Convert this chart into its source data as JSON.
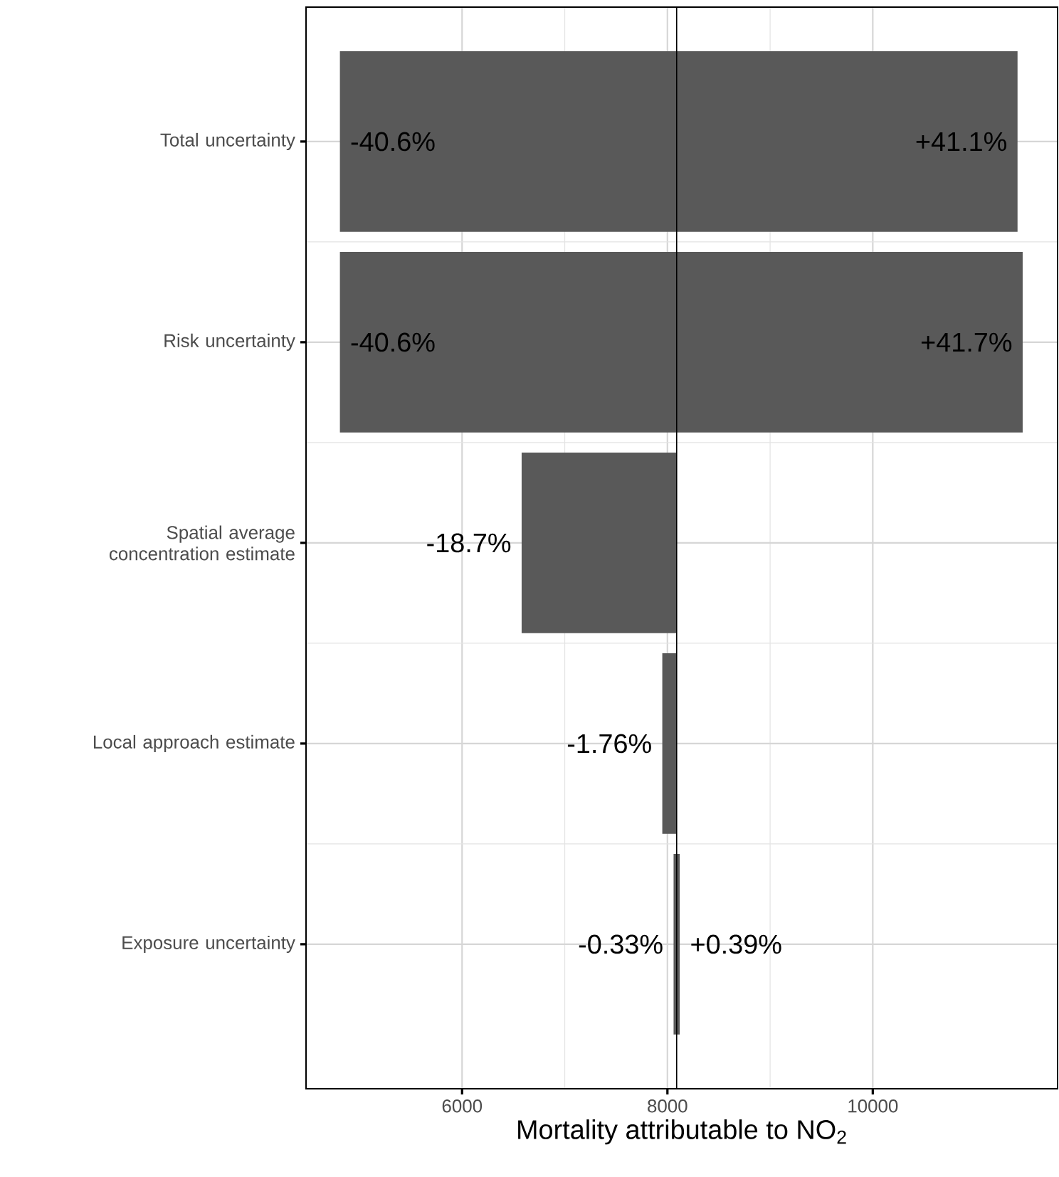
{
  "chart_data": {
    "type": "bar",
    "orientation": "horizontal",
    "grid": true,
    "categories": [
      "Total uncertainty",
      "Risk uncertainty",
      "Spatial average concentration estimate",
      "Local approach estimate",
      "Exposure uncertainty"
    ],
    "series": [
      {
        "color": "#595959",
        "base": [
          4810,
          4810,
          6580,
          7950,
          8060
        ],
        "values": [
          6600,
          6650,
          1510,
          140,
          60
        ]
      }
    ],
    "annotations": [
      {
        "text": "-40.6%",
        "x": 4810,
        "y": "Total uncertainty"
      },
      {
        "text": "+41.1%",
        "x": 11410,
        "y": "Total uncertainty"
      },
      {
        "text": "-40.6%",
        "x": 4810,
        "y": "Risk uncertainty"
      },
      {
        "text": "+41.7%",
        "x": 11460,
        "y": "Risk uncertainty"
      },
      {
        "text": "-18.7%",
        "x": 6580,
        "y": "Spatial average concentration estimate"
      },
      {
        "text": "-1.76%",
        "x": 7950,
        "y": "Local approach estimate"
      },
      {
        "text": "-0.33%",
        "x": 8060,
        "y": "Exposure uncertainty"
      },
      {
        "text": "+0.39%",
        "x": 8120,
        "y": "Exposure uncertainty"
      }
    ],
    "xlabel": "Mortality attributable to NO$_{2}$",
    "xlim": [
      4480,
      11800
    ],
    "xticks": [
      6000,
      8000,
      10000
    ],
    "ref_lines": [
      {
        "axis": "x",
        "value": 8090,
        "color": "#000000"
      }
    ]
  }
}
